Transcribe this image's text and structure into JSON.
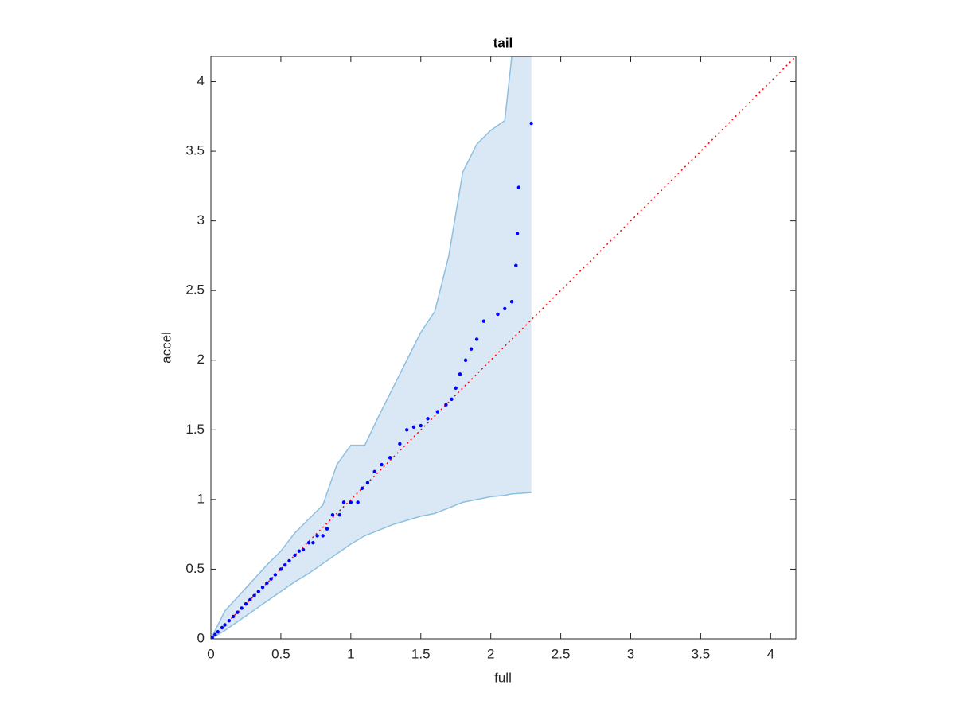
{
  "chart_data": {
    "type": "scatter",
    "title": "tail",
    "x_label": "full",
    "y_label": "accel",
    "xlim": [
      0,
      4.18
    ],
    "ylim": [
      0,
      4.18
    ],
    "xticks": [
      0,
      0.5,
      1,
      1.5,
      2,
      2.5,
      3,
      3.5,
      4
    ],
    "yticks": [
      0,
      0.5,
      1,
      1.5,
      2,
      2.5,
      3,
      3.5,
      4
    ],
    "grid": false,
    "band": {
      "color": "#d9e8f4",
      "edge_color": "#8fbfdf",
      "x": [
        0,
        0.1,
        0.2,
        0.3,
        0.4,
        0.5,
        0.6,
        0.7,
        0.8,
        0.9,
        1.0,
        1.1,
        1.2,
        1.3,
        1.4,
        1.5,
        1.6,
        1.7,
        1.8,
        1.9,
        2.0,
        2.1,
        2.15,
        2.29
      ],
      "upper": [
        0,
        0.2,
        0.31,
        0.42,
        0.53,
        0.63,
        0.76,
        0.86,
        0.96,
        1.25,
        1.39,
        1.39,
        1.6,
        1.8,
        2.0,
        2.2,
        2.35,
        2.75,
        3.35,
        3.55,
        3.65,
        3.72,
        4.18,
        4.18
      ],
      "lower": [
        0,
        0.06,
        0.13,
        0.2,
        0.27,
        0.34,
        0.41,
        0.47,
        0.54,
        0.61,
        0.68,
        0.74,
        0.78,
        0.82,
        0.85,
        0.88,
        0.9,
        0.94,
        0.98,
        1.0,
        1.02,
        1.03,
        1.04,
        1.05
      ]
    },
    "reference_line": {
      "color": "#ff0000",
      "x": [
        0,
        4.18
      ],
      "values": [
        0,
        4.18
      ]
    },
    "series": [
      {
        "color": "#0000ff",
        "x": [
          0.01,
          0.03,
          0.05,
          0.08,
          0.1,
          0.13,
          0.16,
          0.19,
          0.22,
          0.25,
          0.28,
          0.31,
          0.34,
          0.37,
          0.4,
          0.43,
          0.46,
          0.5,
          0.53,
          0.56,
          0.6,
          0.63,
          0.66,
          0.7,
          0.73,
          0.76,
          0.8,
          0.83,
          0.87,
          0.92,
          0.95,
          1.0,
          1.05,
          1.08,
          1.12,
          1.17,
          1.22,
          1.28,
          1.35,
          1.4,
          1.45,
          1.5,
          1.55,
          1.62,
          1.68,
          1.72,
          1.75,
          1.78,
          1.82,
          1.86,
          1.9,
          1.95,
          2.05,
          2.1,
          2.15,
          2.18,
          2.19,
          2.2,
          2.29
        ],
        "values": [
          0.01,
          0.03,
          0.05,
          0.08,
          0.1,
          0.13,
          0.16,
          0.19,
          0.22,
          0.25,
          0.28,
          0.31,
          0.34,
          0.37,
          0.4,
          0.43,
          0.46,
          0.5,
          0.53,
          0.56,
          0.6,
          0.63,
          0.64,
          0.69,
          0.69,
          0.74,
          0.74,
          0.79,
          0.89,
          0.89,
          0.98,
          0.98,
          0.98,
          1.08,
          1.12,
          1.2,
          1.25,
          1.3,
          1.4,
          1.5,
          1.52,
          1.53,
          1.58,
          1.63,
          1.68,
          1.72,
          1.8,
          1.9,
          2.0,
          2.08,
          2.15,
          2.28,
          2.33,
          2.37,
          2.42,
          2.68,
          2.91,
          3.24,
          3.7
        ]
      }
    ]
  }
}
